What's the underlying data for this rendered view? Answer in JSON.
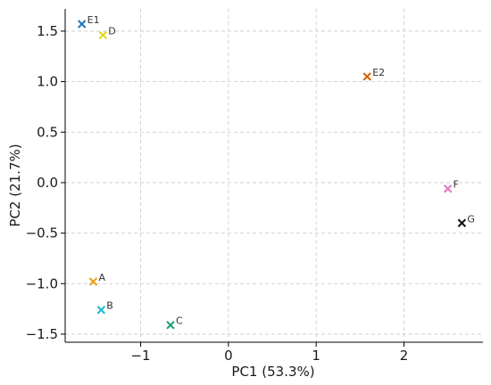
{
  "chart_data": {
    "type": "scatter",
    "title": "",
    "xlabel": "PC1 (53.3%)",
    "ylabel": "PC2 (21.7%)",
    "xlim": [
      -1.86,
      2.9
    ],
    "ylim": [
      -1.58,
      1.72
    ],
    "grid": true,
    "xticks": [
      -1,
      0,
      1,
      2
    ],
    "yticks": [
      -1.5,
      -1.0,
      -0.5,
      0.0,
      0.5,
      1.0,
      1.5
    ],
    "xtick_labels": [
      "−1",
      "0",
      "1",
      "2"
    ],
    "ytick_labels": [
      "−1.5",
      "−1.0",
      "−0.5",
      "0.0",
      "0.5",
      "1.0",
      "1.5"
    ],
    "marker": "x",
    "points": [
      {
        "label": "E1",
        "x": -1.67,
        "y": 1.57,
        "color": "#1f77b4"
      },
      {
        "label": "D",
        "x": -1.43,
        "y": 1.46,
        "color": "#e8d80f"
      },
      {
        "label": "E2",
        "x": 1.58,
        "y": 1.05,
        "color": "#d95f02"
      },
      {
        "label": "F",
        "x": 2.5,
        "y": -0.06,
        "color": "#e377c2"
      },
      {
        "label": "G",
        "x": 2.66,
        "y": -0.4,
        "color": "#111111"
      },
      {
        "label": "A",
        "x": -1.54,
        "y": -0.98,
        "color": "#e6a11a"
      },
      {
        "label": "B",
        "x": -1.45,
        "y": -1.26,
        "color": "#17becf"
      },
      {
        "label": "C",
        "x": -0.66,
        "y": -1.41,
        "color": "#1b9e77"
      }
    ]
  }
}
